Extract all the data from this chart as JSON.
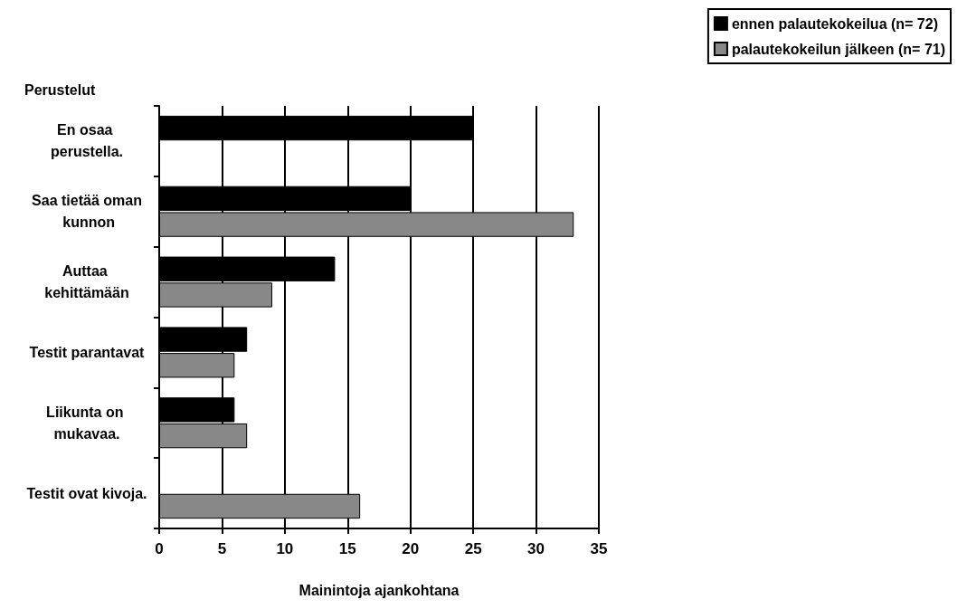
{
  "chart_data": {
    "type": "bar",
    "orientation": "horizontal",
    "ylabel": "Perustelut",
    "xlabel": "Mainintoja ajankohtana",
    "categories": [
      "En osaa perustella.",
      "Saa tietää oman kunnon",
      "Auttaa kehittämään",
      "Testit parantavat",
      "Liikunta on mukavaa.",
      "Testit ovat kivoja."
    ],
    "series": [
      {
        "name": "ennen palautekokeilua (n= 72)",
        "color": "#000000",
        "values": [
          25,
          20,
          14,
          7,
          6,
          null
        ]
      },
      {
        "name": "palautekokeilun jälkeen (n= 71)",
        "color": "#888888",
        "values": [
          null,
          33,
          9,
          6,
          7,
          16
        ]
      }
    ],
    "xlim": [
      0,
      35
    ],
    "xticks": [
      0,
      5,
      10,
      15,
      20,
      25,
      30,
      35
    ],
    "grid": "x",
    "legend": "top right"
  }
}
